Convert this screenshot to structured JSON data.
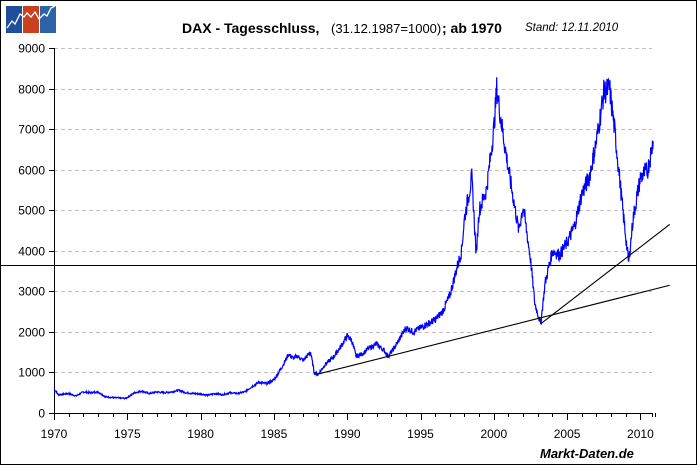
{
  "header": {
    "title_main": "DAX - Tagesschluss,",
    "title_base": "(31.12.1987=1000)",
    "title_since": "; ab 1970",
    "title_date": "Stand: 12.11.2010"
  },
  "logo": {
    "name": "markt-daten-logo",
    "colors": [
      "#1f4f9a",
      "#c8401e",
      "#2f63a8"
    ]
  },
  "footer": {
    "source": "Markt-Daten.de"
  },
  "colors": {
    "series": "#0000ff",
    "trendline": "#000000",
    "grid": "#c0c0c0",
    "reference_line": "#000000"
  },
  "chart_data": {
    "type": "line",
    "title": "DAX - Tagesschluss, (31.12.1987=1000) ; ab 1970",
    "subtitle": "Stand: 12.11.2010",
    "xlabel": "",
    "ylabel": "",
    "x_ticks": [
      "1970",
      "1975",
      "1980",
      "1985",
      "1990",
      "1995",
      "2000",
      "2005",
      "2010"
    ],
    "y_ticks": [
      "0",
      "1000",
      "2000",
      "3000",
      "4000",
      "5000",
      "6000",
      "7000",
      "8000",
      "9000"
    ],
    "xlim": [
      1970,
      2012
    ],
    "ylim": [
      0,
      9000
    ],
    "grid": "horizontal dashed",
    "legend": "none",
    "series": [
      {
        "name": "DAX",
        "x": [
          1970.0,
          1970.3,
          1971.0,
          1971.5,
          1972.0,
          1972.5,
          1973.0,
          1973.5,
          1974.0,
          1974.5,
          1974.9,
          1975.5,
          1976.0,
          1976.5,
          1977.0,
          1977.5,
          1978.0,
          1978.5,
          1979.0,
          1979.5,
          1980.0,
          1980.5,
          1981.0,
          1981.5,
          1982.0,
          1982.5,
          1983.0,
          1983.5,
          1984.0,
          1984.5,
          1985.0,
          1985.5,
          1986.0,
          1986.3,
          1986.6,
          1987.0,
          1987.5,
          1987.75,
          1988.0,
          1988.5,
          1989.0,
          1989.5,
          1990.0,
          1990.3,
          1990.6,
          1991.0,
          1991.5,
          1992.0,
          1992.5,
          1992.8,
          1993.3,
          1994.0,
          1994.5,
          1995.0,
          1995.5,
          1996.0,
          1996.5,
          1997.0,
          1997.5,
          1997.8,
          1998.0,
          1998.5,
          1998.8,
          1999.0,
          1999.5,
          2000.0,
          2000.2,
          2000.5,
          2001.0,
          2001.7,
          2002.0,
          2002.5,
          2002.8,
          2003.2,
          2003.5,
          2004.0,
          2004.5,
          2005.0,
          2005.5,
          2006.0,
          2006.5,
          2007.0,
          2007.5,
          2007.9,
          2008.3,
          2008.8,
          2009.2,
          2009.5,
          2010.0,
          2010.5,
          2010.87
        ],
        "values": [
          600,
          450,
          480,
          420,
          520,
          500,
          520,
          400,
          380,
          370,
          360,
          500,
          540,
          480,
          520,
          500,
          520,
          560,
          500,
          480,
          470,
          440,
          480,
          450,
          500,
          480,
          520,
          650,
          760,
          720,
          820,
          1100,
          1450,
          1350,
          1400,
          1300,
          1500,
          1000,
          950,
          1200,
          1350,
          1600,
          1900,
          1800,
          1400,
          1450,
          1600,
          1700,
          1550,
          1400,
          1650,
          2100,
          2000,
          2100,
          2200,
          2300,
          2500,
          2900,
          3600,
          4000,
          4800,
          5800,
          3900,
          5000,
          5500,
          7000,
          8000,
          7200,
          6000,
          4500,
          5100,
          3800,
          2700,
          2200,
          3200,
          4000,
          3900,
          4200,
          4600,
          5400,
          5800,
          6700,
          7900,
          8000,
          6800,
          5000,
          3700,
          4800,
          5800,
          6000,
          6700
        ]
      }
    ],
    "annotations": [
      {
        "type": "horizontal_line",
        "y": 3650
      },
      {
        "type": "trendline",
        "from": [
          1987.9,
          950
        ],
        "to": [
          2012,
          3150
        ]
      },
      {
        "type": "trendline",
        "from": [
          2003.2,
          2200
        ],
        "to": [
          2012,
          4650
        ]
      }
    ]
  }
}
